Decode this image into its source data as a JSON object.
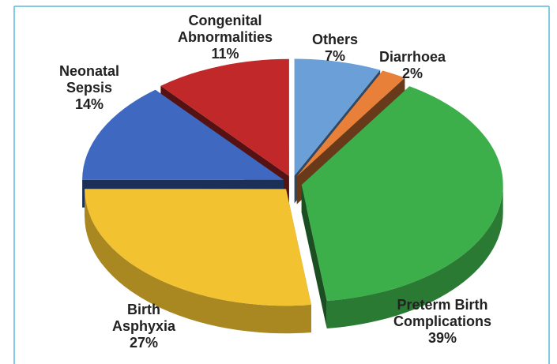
{
  "chart_data": {
    "type": "pie",
    "categories": [
      "Others",
      "Diarrhoea",
      "Preterm Birth Complications",
      "Birth Asphyxia",
      "Neonatal Sepsis",
      "Congenital Abnormalities"
    ],
    "values": [
      7,
      2,
      39,
      27,
      14,
      11
    ],
    "value_labels": [
      "7%",
      "2%",
      "39%",
      "27%",
      "14%",
      "11%"
    ],
    "colors": [
      "#6a9fd8",
      "#e8803a",
      "#3cae4a",
      "#f2c230",
      "#3f68c0",
      "#c0282a"
    ]
  }
}
